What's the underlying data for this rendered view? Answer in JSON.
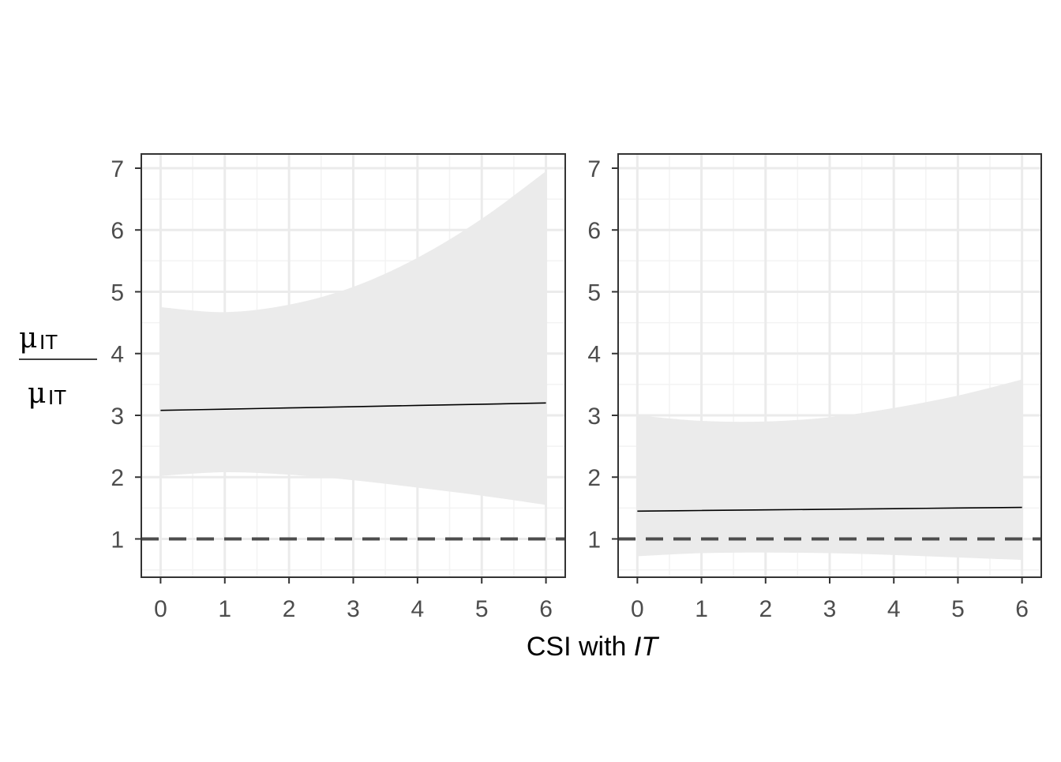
{
  "chart_data": [
    {
      "type": "line",
      "panel": "left",
      "x": [
        0,
        1,
        2,
        3,
        4,
        5,
        6
      ],
      "series": [
        {
          "estimate": [
            3.08,
            3.1,
            3.12,
            3.14,
            3.16,
            3.18,
            3.2
          ],
          "lower": [
            2.02,
            2.08,
            2.04,
            1.95,
            1.83,
            1.7,
            1.55
          ],
          "upper": [
            4.75,
            4.67,
            4.79,
            5.08,
            5.55,
            6.18,
            6.95
          ]
        }
      ],
      "reference_line": {
        "y": 1,
        "style": "dashed"
      },
      "xlim": [
        -0.3,
        6.3
      ],
      "ylim": [
        0.38,
        7.23
      ],
      "xticks": [
        "0",
        "1",
        "2",
        "3",
        "4",
        "5",
        "6"
      ],
      "yticks": [
        "1",
        "2",
        "3",
        "4",
        "5",
        "6",
        "7"
      ],
      "grid": true
    },
    {
      "type": "line",
      "panel": "right",
      "x": [
        0,
        1,
        2,
        3,
        4,
        5,
        6
      ],
      "series": [
        {
          "estimate": [
            1.45,
            1.46,
            1.47,
            1.48,
            1.49,
            1.5,
            1.51
          ],
          "lower": [
            0.72,
            0.77,
            0.78,
            0.77,
            0.74,
            0.7,
            0.66
          ],
          "upper": [
            3.0,
            2.91,
            2.9,
            2.97,
            3.12,
            3.32,
            3.58
          ]
        }
      ],
      "reference_line": {
        "y": 1,
        "style": "dashed"
      },
      "xlim": [
        -0.3,
        6.3
      ],
      "ylim": [
        0.38,
        7.23
      ],
      "xticks": [
        "0",
        "1",
        "2",
        "3",
        "4",
        "5",
        "6"
      ],
      "yticks": [
        "1",
        "2",
        "3",
        "4",
        "5",
        "6",
        "7"
      ],
      "grid": true
    }
  ],
  "xlabel": {
    "main": "CSI with ",
    "italic": "IT"
  },
  "ylabel": {
    "numerator_symbol": "μ",
    "numerator_sub": "IT",
    "denominator_symbol": "μ",
    "denominator_sub": "IT"
  },
  "colors": {
    "ribbon": "#ebebeb",
    "estimate_line": "#000000",
    "reference_line": "#4d4d4d",
    "grid_major": "#ebebeb",
    "grid_minor": "#f3f3f3",
    "panel_border": "#333333",
    "tick_label": "#4d4d4d"
  }
}
